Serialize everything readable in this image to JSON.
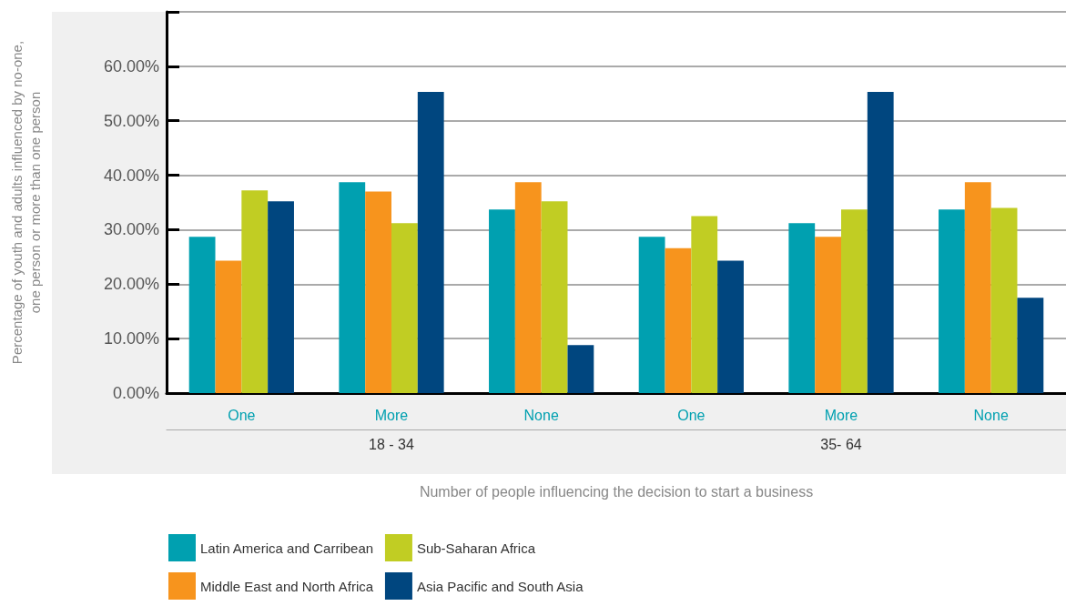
{
  "chart_data": {
    "type": "bar",
    "xlabel": "Number of people influencing the decision to start a business",
    "ylabel": "Percentage of youth and adults influenced by no-one,\none person or more than one person",
    "categories": [
      "One",
      "More",
      "None",
      "One",
      "More",
      "None"
    ],
    "annotations": [
      "18 - 34",
      "35- 64"
    ],
    "series": [
      {
        "name": "Latin America and Carribean",
        "color": "#00a0b0",
        "values": [
          28.7,
          38.7,
          33.7,
          28.7,
          31.2,
          33.7
        ]
      },
      {
        "name": "Middle East and North Africa",
        "color": "#f7941d",
        "values": [
          24.3,
          37.0,
          38.7,
          26.6,
          28.7,
          38.7
        ]
      },
      {
        "name": "Sub-Saharan Africa",
        "color": "#c1cd23",
        "values": [
          37.2,
          31.2,
          35.2,
          32.5,
          33.7,
          34.0
        ]
      },
      {
        "name": "Asia Pacific and South Asia",
        "color": "#00467f",
        "values": [
          35.2,
          55.3,
          8.8,
          24.3,
          55.3,
          17.5
        ]
      }
    ],
    "ylim": [
      0,
      70
    ],
    "yticks": [
      {
        "value": 0,
        "label": "0.00%"
      },
      {
        "value": 10,
        "label": "10.00%"
      },
      {
        "value": 20,
        "label": "20.00%"
      },
      {
        "value": 30,
        "label": "30.00%"
      },
      {
        "value": 40,
        "label": "40.00%"
      },
      {
        "value": 50,
        "label": "50.00%"
      },
      {
        "value": 60,
        "label": "60.00%"
      },
      {
        "value": 70,
        "label": null
      }
    ],
    "grid": "y",
    "legend": "bottom"
  }
}
